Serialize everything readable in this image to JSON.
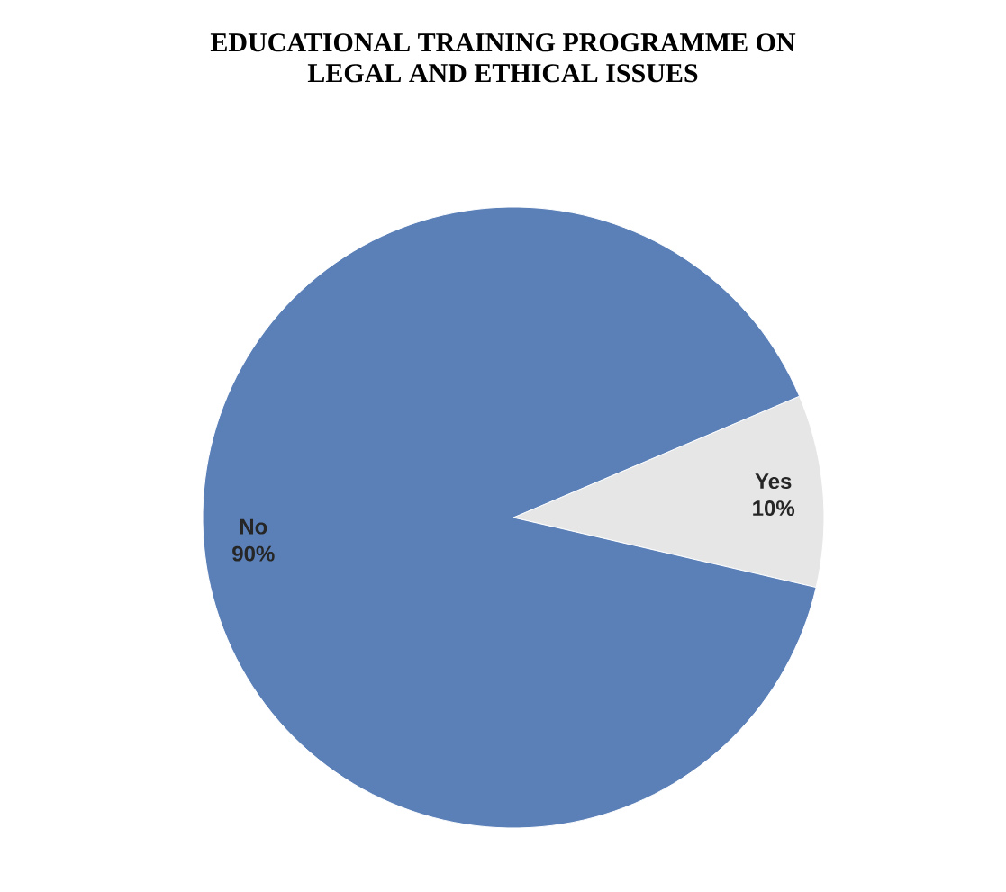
{
  "chart_data": {
    "type": "pie",
    "title": "EDUCATIONAL TRAINING PROGRAMME ON\nLEGAL AND ETHICAL ISSUES",
    "categories": [
      "Yes",
      "No"
    ],
    "values": [
      10,
      90
    ],
    "value_labels": [
      "10%",
      "90%"
    ],
    "colors": [
      "#e6e6e6",
      "#5b80b8"
    ]
  }
}
